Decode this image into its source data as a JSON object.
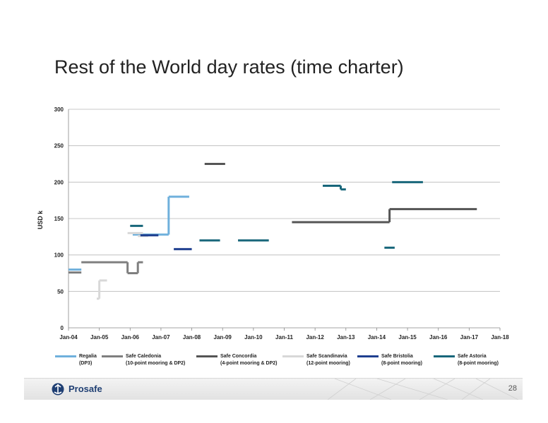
{
  "slide": {
    "title": "Rest of the World day rates (time charter)",
    "page_number": "28",
    "logo_text": "Prosafe",
    "logo_icon": "prosafe-logo-icon"
  },
  "chart_data": {
    "type": "line",
    "title": "",
    "xlabel": "",
    "ylabel": "USD k",
    "ylim": [
      0,
      300
    ],
    "yticks": [
      0,
      50,
      100,
      150,
      200,
      250,
      300
    ],
    "xlim": [
      "Jan-04",
      "Jan-18"
    ],
    "xtick_labels": [
      "Jan-04",
      "Jan-05",
      "Jan-06",
      "Jan-07",
      "Jan-08",
      "Jan-09",
      "Jan-10",
      "Jan-11",
      "Jan-12",
      "Jan-13",
      "Jan-14",
      "Jan-15",
      "Jan-16",
      "Jan-17",
      "Jan-18"
    ],
    "grid": "horizontal",
    "legend_position": "bottom",
    "series": [
      {
        "name": "Regalia",
        "subtitle": "(DP3)",
        "color": "#6fb0dc",
        "segments": [
          {
            "x": [
              "Jan-04",
              "Jun-04"
            ],
            "y": [
              80,
              80
            ]
          },
          {
            "x": [
              "Feb-06",
              "Apr-07"
            ],
            "y": [
              128,
              128
            ]
          },
          {
            "x": [
              "Apr-07",
              "Dec-07"
            ],
            "y": [
              180,
              180
            ]
          }
        ],
        "risers": [
          {
            "x": "Apr-07",
            "y": [
              128,
              180
            ]
          }
        ]
      },
      {
        "name": "Safe Caledonia",
        "subtitle": "(10-point mooring & DP2)",
        "color": "#7f7f7f",
        "segments": [
          {
            "x": [
              "Jan-04",
              "Jun-04"
            ],
            "y": [
              76,
              76
            ]
          },
          {
            "x": [
              "Jun-04",
              "Dec-05"
            ],
            "y": [
              90,
              90
            ]
          },
          {
            "x": [
              "Dec-05",
              "Apr-06"
            ],
            "y": [
              75,
              75
            ]
          },
          {
            "x": [
              "Apr-06",
              "Jun-06"
            ],
            "y": [
              90,
              90
            ]
          }
        ],
        "risers": [
          {
            "x": "Dec-05",
            "y": [
              75,
              90
            ]
          },
          {
            "x": "Apr-06",
            "y": [
              75,
              90
            ]
          }
        ]
      },
      {
        "name": "Safe Concordia",
        "subtitle": "(4-point mooring & DP2)",
        "color": "#555555",
        "segments": [
          {
            "x": [
              "Jun-08",
              "Feb-09"
            ],
            "y": [
              225,
              225
            ]
          },
          {
            "x": [
              "Apr-11",
              "Jun-14"
            ],
            "y": [
              145,
              145
            ]
          },
          {
            "x": [
              "Jun-14",
              "Apr-17"
            ],
            "y": [
              163,
              163
            ]
          }
        ],
        "risers": [
          {
            "x": "Jun-14",
            "y": [
              145,
              163
            ]
          }
        ]
      },
      {
        "name": "Safe Scandinavia",
        "subtitle": "(12-point mooring)",
        "color": "#d8d8d8",
        "segments": [
          {
            "x": [
              "Dec-04",
              "Jan-05"
            ],
            "y": [
              40,
              40
            ]
          },
          {
            "x": [
              "Jan-05",
              "Apr-05"
            ],
            "y": [
              65,
              65
            ]
          },
          {
            "x": [
              "Dec-05",
              "Jun-06"
            ],
            "y": [
              130,
              130
            ]
          },
          {
            "x": [
              "Apr-06",
              "Aug-06"
            ],
            "y": [
              126,
              126
            ]
          }
        ],
        "risers": [
          {
            "x": "Jan-05",
            "y": [
              40,
              65
            ]
          }
        ]
      },
      {
        "name": "Safe Bristolia",
        "subtitle": "(8-point mooring)",
        "color": "#1f3f8f",
        "segments": [
          {
            "x": [
              "May-06",
              "Dec-06"
            ],
            "y": [
              127,
              127
            ]
          },
          {
            "x": [
              "Jun-07",
              "Jan-08"
            ],
            "y": [
              108,
              108
            ]
          }
        ],
        "risers": []
      },
      {
        "name": "Safe Astoria",
        "subtitle": "(8-point mooring)",
        "color": "#17667a",
        "segments": [
          {
            "x": [
              "Jan-06",
              "Jun-06"
            ],
            "y": [
              140,
              140
            ]
          },
          {
            "x": [
              "Apr-08",
              "Dec-08"
            ],
            "y": [
              120,
              120
            ]
          },
          {
            "x": [
              "Jul-09",
              "Jul-10"
            ],
            "y": [
              120,
              120
            ]
          },
          {
            "x": [
              "Apr-12",
              "Nov-12"
            ],
            "y": [
              195,
              195
            ]
          },
          {
            "x": [
              "Nov-12",
              "Jan-13"
            ],
            "y": [
              190,
              190
            ]
          },
          {
            "x": [
              "Apr-14",
              "Aug-14"
            ],
            "y": [
              110,
              110
            ]
          },
          {
            "x": [
              "Jul-14",
              "Jul-15"
            ],
            "y": [
              200,
              200
            ]
          }
        ],
        "risers": [
          {
            "x": "Nov-12",
            "y": [
              190,
              195
            ]
          }
        ]
      }
    ]
  }
}
